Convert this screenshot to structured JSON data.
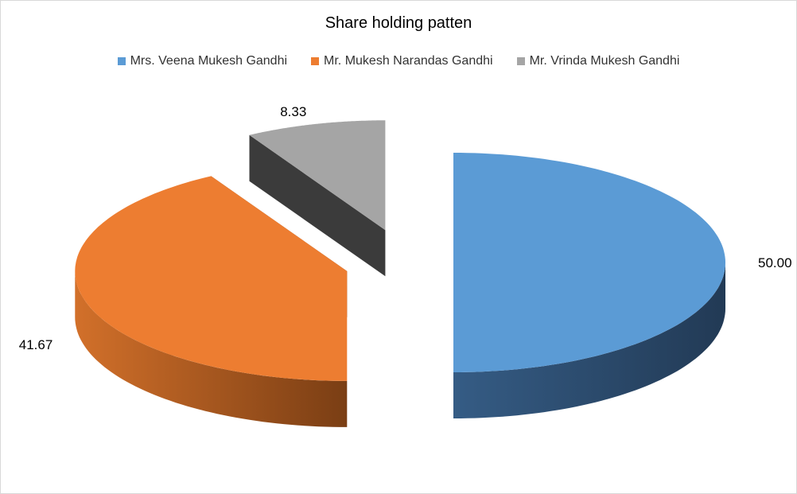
{
  "chart_data": {
    "type": "pie",
    "style": "3d-exploded",
    "title": "Share holding patten",
    "legend_position": "top",
    "slices": [
      {
        "label": "Mrs. Veena Mukesh Gandhi",
        "value": 50.0,
        "display": "50.00",
        "color": "#5B9BD5",
        "side_dark": "#223A55",
        "side_light": "#355C85"
      },
      {
        "label": "Mr. Mukesh Narandas Gandhi",
        "value": 41.67,
        "display": "41.67",
        "color": "#ED7D31",
        "side_dark": "#7A3E14",
        "side_light": "#D2702A"
      },
      {
        "label": "Mr. Vrinda Mukesh Gandhi",
        "value": 8.33,
        "display": "8.33",
        "color": "#A5A5A5",
        "side_dark": "#3B3B3B",
        "side_light": "#474747"
      }
    ]
  }
}
